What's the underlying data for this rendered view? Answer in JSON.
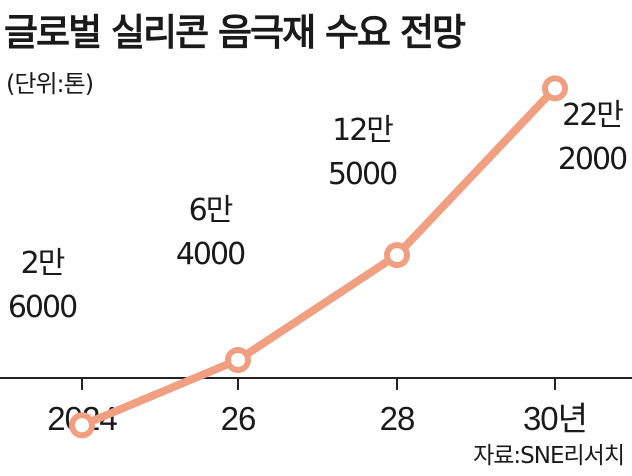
{
  "title": "글로벌 실리콘 음극재 수요 전망",
  "unit": "(단위:톤)",
  "source": "자료:SNE리서치",
  "colors": {
    "line": "#f0a080",
    "point_fill": "#ffffff",
    "axis": "#222222",
    "text": "#1a1a1a"
  },
  "chart_data": {
    "type": "line",
    "title": "글로벌 실리콘 음극재 수요 전망",
    "ylabel": "",
    "xlabel": "",
    "unit": "(단위:톤)",
    "categories": [
      "2024",
      "26",
      "28",
      "30년"
    ],
    "values": [
      26000,
      64000,
      125000,
      222000
    ],
    "data_labels": [
      [
        "2만",
        "6000"
      ],
      [
        "6만",
        "4000"
      ],
      [
        "12만",
        "5000"
      ],
      [
        "22만",
        "2000"
      ]
    ],
    "ylim": [
      0,
      240000
    ],
    "grid": false,
    "legend": "none"
  }
}
